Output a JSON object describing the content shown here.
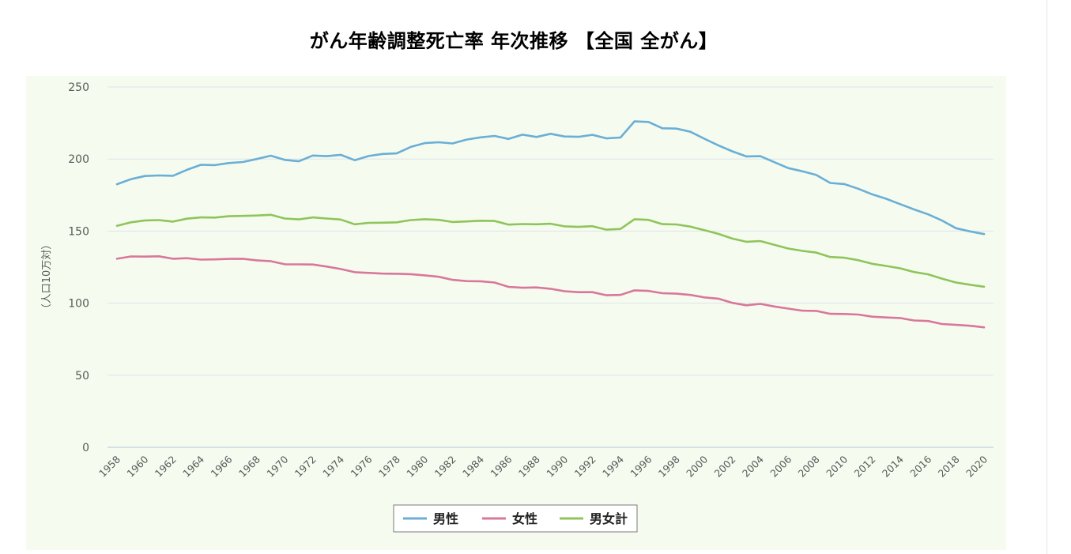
{
  "title": "がん年齢調整死亡率 年次推移 【全国 全がん】",
  "chart_data": {
    "type": "line",
    "title": "がん年齢調整死亡率 年次推移 【全国 全がん】",
    "ylabel": "（人口10万対）",
    "xlabel": "",
    "ylim": [
      0,
      250
    ],
    "yticks": [
      0,
      50,
      100,
      150,
      200,
      250
    ],
    "x": [
      1958,
      1959,
      1960,
      1961,
      1962,
      1963,
      1964,
      1965,
      1966,
      1967,
      1968,
      1969,
      1970,
      1971,
      1972,
      1973,
      1974,
      1975,
      1976,
      1977,
      1978,
      1979,
      1980,
      1981,
      1982,
      1983,
      1984,
      1985,
      1986,
      1987,
      1988,
      1989,
      1990,
      1991,
      1992,
      1993,
      1994,
      1995,
      1996,
      1997,
      1998,
      1999,
      2000,
      2001,
      2002,
      2003,
      2004,
      2005,
      2006,
      2007,
      2008,
      2009,
      2010,
      2011,
      2012,
      2013,
      2014,
      2015,
      2016,
      2017,
      2018,
      2019,
      2020
    ],
    "xtick_labels": [
      "1958",
      "1960",
      "1962",
      "1964",
      "1966",
      "1968",
      "1970",
      "1972",
      "1974",
      "1976",
      "1978",
      "1980",
      "1982",
      "1984",
      "1986",
      "1988",
      "1990",
      "1992",
      "1994",
      "1996",
      "1998",
      "2000",
      "2002",
      "2004",
      "2006",
      "2008",
      "2010",
      "2012",
      "2014",
      "2016",
      "2018",
      "2020"
    ],
    "series": [
      {
        "name": "男性",
        "color": "#6BAED6",
        "values": [
          182.5,
          186.0,
          188.2,
          188.6,
          188.4,
          192.5,
          196.0,
          195.8,
          197.2,
          197.9,
          200.0,
          202.3,
          199.4,
          198.4,
          202.4,
          202.0,
          202.9,
          199.2,
          202.1,
          203.5,
          203.9,
          208.4,
          211.0,
          211.6,
          210.8,
          213.5,
          215.0,
          216.0,
          213.9,
          216.9,
          215.3,
          217.5,
          215.6,
          215.4,
          216.8,
          214.3,
          214.9,
          226.1,
          225.7,
          221.3,
          221.1,
          218.9,
          214.1,
          209.5,
          205.3,
          201.8,
          202.0,
          197.8,
          193.7,
          191.5,
          188.9,
          183.4,
          182.6,
          179.4,
          175.5,
          172.4,
          168.7,
          165.0,
          161.6,
          157.3,
          152.0,
          149.8,
          147.9
        ]
      },
      {
        "name": "女性",
        "color": "#D9779B",
        "values": [
          130.8,
          132.4,
          132.3,
          132.5,
          130.8,
          131.2,
          130.2,
          130.4,
          130.7,
          130.8,
          129.7,
          129.1,
          127.0,
          126.9,
          126.8,
          125.4,
          123.7,
          121.5,
          121.0,
          120.5,
          120.4,
          120.1,
          119.3,
          118.3,
          116.2,
          115.3,
          115.2,
          114.3,
          111.3,
          110.7,
          110.9,
          110.0,
          108.3,
          107.6,
          107.6,
          105.5,
          105.7,
          108.9,
          108.5,
          106.9,
          106.6,
          105.7,
          104.0,
          103.1,
          100.2,
          98.5,
          99.5,
          97.7,
          96.2,
          94.8,
          94.6,
          92.6,
          92.5,
          92.1,
          90.6,
          90.1,
          89.7,
          88.0,
          87.6,
          85.5,
          84.9,
          84.3,
          83.2
        ]
      },
      {
        "name": "男女計",
        "color": "#8FC45A",
        "values": [
          153.7,
          156.1,
          157.4,
          157.6,
          156.6,
          158.6,
          159.5,
          159.4,
          160.3,
          160.5,
          160.8,
          161.3,
          158.7,
          158.1,
          159.5,
          158.7,
          158.0,
          154.7,
          155.7,
          155.8,
          156.1,
          157.6,
          158.2,
          157.8,
          156.3,
          156.7,
          157.2,
          157.0,
          154.5,
          154.9,
          154.7,
          155.1,
          153.3,
          152.9,
          153.4,
          151.0,
          151.5,
          158.2,
          157.8,
          154.8,
          154.6,
          153.1,
          150.6,
          148.1,
          144.8,
          142.6,
          143.1,
          140.5,
          137.9,
          136.3,
          135.1,
          132.0,
          131.5,
          129.8,
          127.3,
          125.8,
          124.2,
          121.6,
          120.0,
          117.0,
          114.3,
          112.8,
          111.4
        ]
      }
    ],
    "legend_position": "bottom-center",
    "grid": true
  },
  "colors": {
    "plot_background": "#F5FCEF",
    "grid": "#DCE3EA",
    "axis": "#B5C5D8",
    "tick_text": "#595959"
  }
}
